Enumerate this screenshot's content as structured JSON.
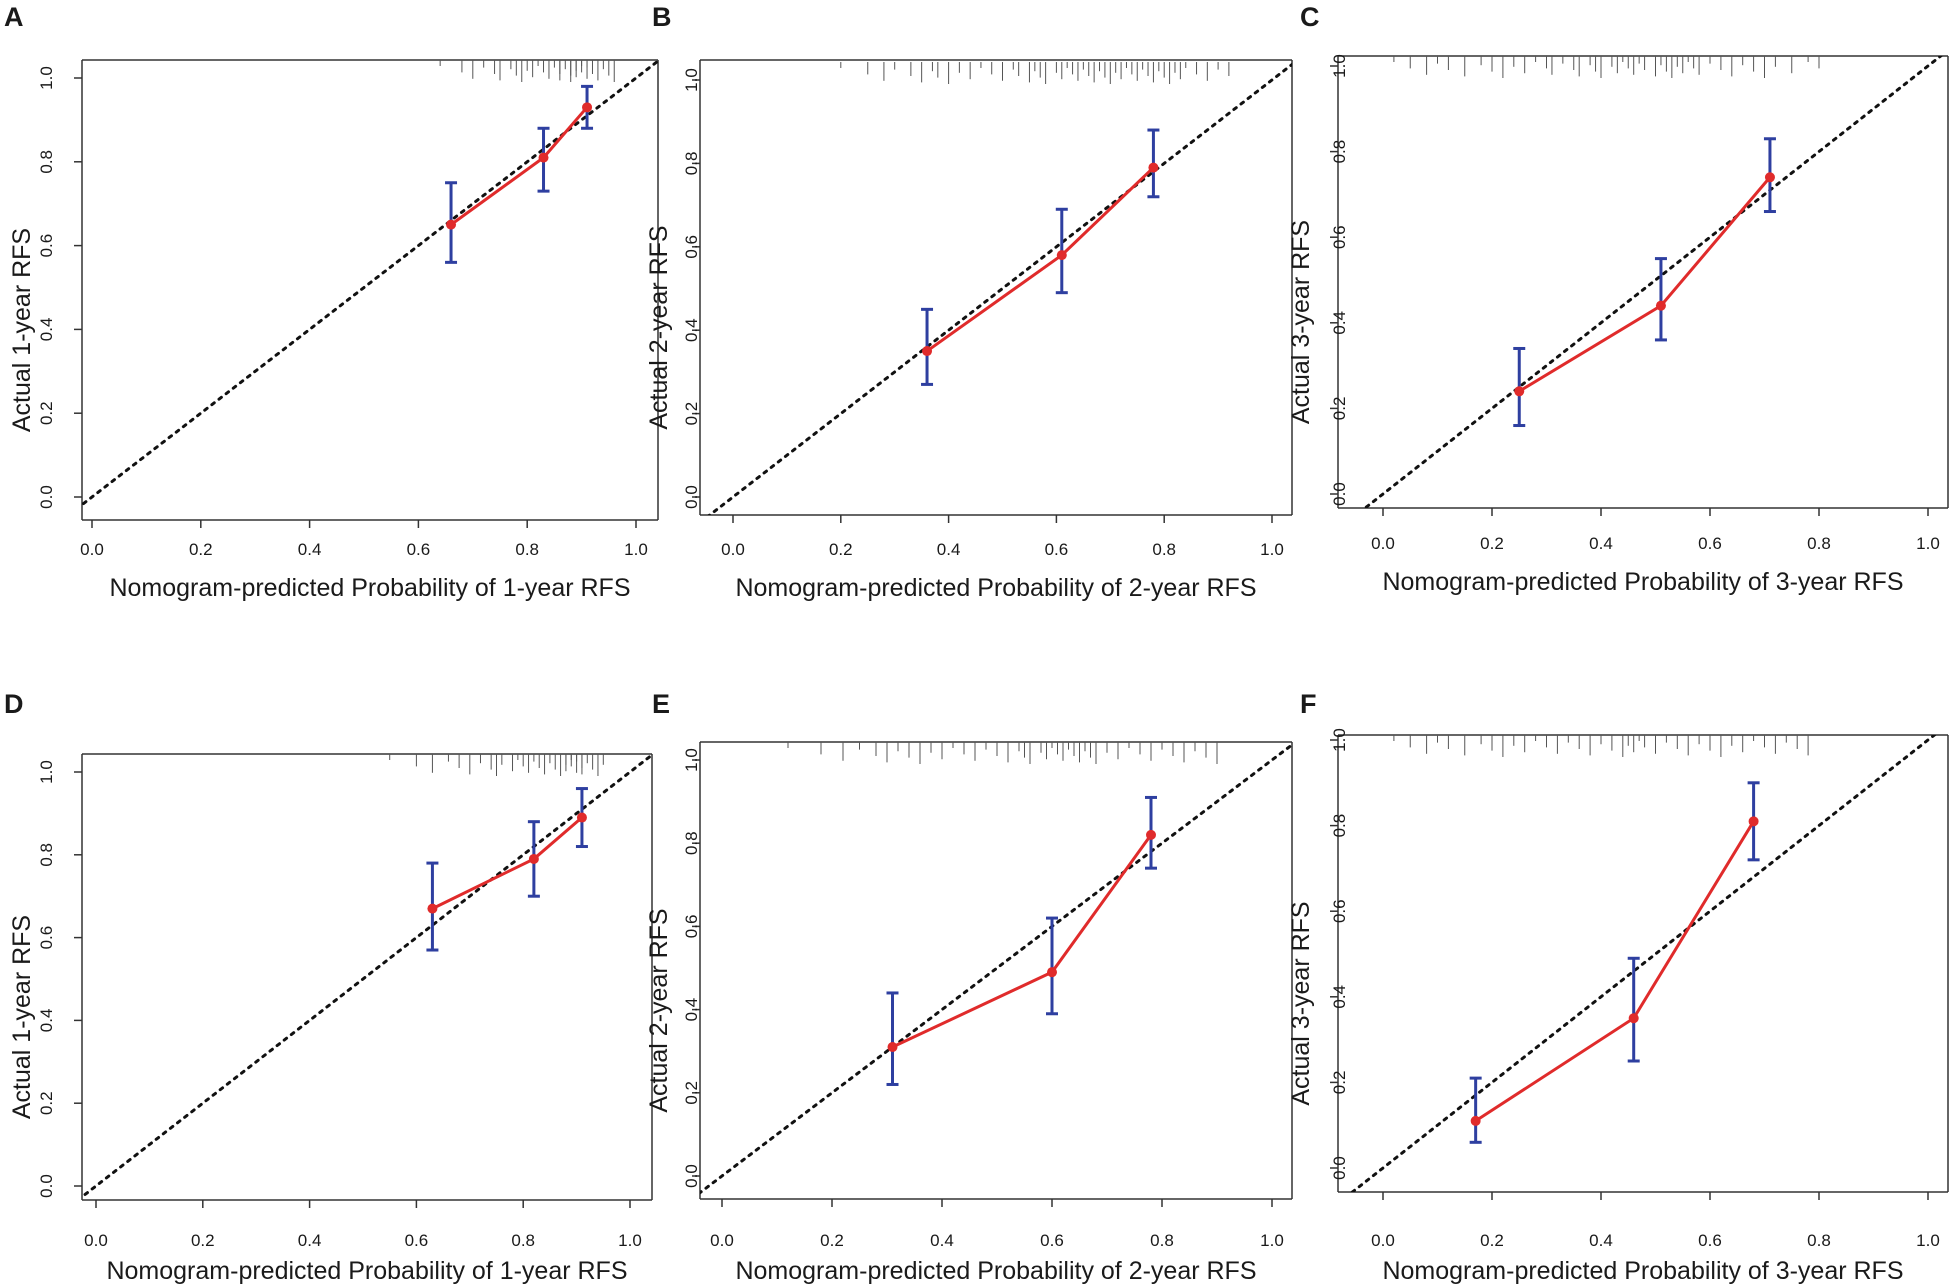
{
  "figure": {
    "colors": {
      "calibration_line": "#e02b2b",
      "ci_bars": "#2e3fa0",
      "reference_line": "#111111",
      "rug": "#555555"
    }
  },
  "chart_data": [
    {
      "panel": "A",
      "type": "line",
      "xlabel": "Nomogram-predicted Probability of 1-year RFS",
      "ylabel": "Actual 1-year RFS",
      "xlim": [
        0,
        1.05
      ],
      "ylim": [
        0,
        1.02
      ],
      "xticks": [
        "0.0",
        "0.2",
        "0.4",
        "0.6",
        "0.8",
        "1.0"
      ],
      "yticks": [
        "0.0",
        "0.2",
        "0.4",
        "0.6",
        "0.8",
        "1.0"
      ],
      "reference_line": "diagonal",
      "points": [
        {
          "x": 0.66,
          "y": 0.65,
          "lo": 0.56,
          "hi": 0.75
        },
        {
          "x": 0.83,
          "y": 0.81,
          "lo": 0.73,
          "hi": 0.88
        },
        {
          "x": 0.91,
          "y": 0.93,
          "lo": 0.88,
          "hi": 0.98
        }
      ],
      "rug": [
        0.64,
        0.68,
        0.7,
        0.72,
        0.74,
        0.75,
        0.77,
        0.78,
        0.79,
        0.8,
        0.81,
        0.82,
        0.83,
        0.84,
        0.85,
        0.86,
        0.86,
        0.87,
        0.88,
        0.88,
        0.89,
        0.89,
        0.9,
        0.9,
        0.91,
        0.91,
        0.92,
        0.93,
        0.94,
        0.95,
        0.96
      ]
    },
    {
      "panel": "B",
      "type": "line",
      "xlabel": "Nomogram-predicted Probability of 2-year RFS",
      "ylabel": "Actual 2-year RFS",
      "xlim": [
        0,
        1.05
      ],
      "ylim": [
        0,
        1.02
      ],
      "xticks": [
        "0.0",
        "0.2",
        "0.4",
        "0.6",
        "0.8",
        "1.0"
      ],
      "yticks": [
        "0.0",
        "0.2",
        "0.4",
        "0.6",
        "0.8",
        "1.0"
      ],
      "reference_line": "diagonal",
      "points": [
        {
          "x": 0.36,
          "y": 0.35,
          "lo": 0.27,
          "hi": 0.45
        },
        {
          "x": 0.61,
          "y": 0.58,
          "lo": 0.49,
          "hi": 0.69
        },
        {
          "x": 0.78,
          "y": 0.79,
          "lo": 0.72,
          "hi": 0.88
        }
      ],
      "rug": [
        0.2,
        0.25,
        0.28,
        0.3,
        0.33,
        0.35,
        0.37,
        0.38,
        0.4,
        0.42,
        0.44,
        0.46,
        0.48,
        0.5,
        0.52,
        0.53,
        0.55,
        0.56,
        0.57,
        0.58,
        0.6,
        0.61,
        0.62,
        0.63,
        0.64,
        0.65,
        0.66,
        0.67,
        0.68,
        0.69,
        0.7,
        0.71,
        0.72,
        0.73,
        0.74,
        0.75,
        0.76,
        0.77,
        0.78,
        0.79,
        0.8,
        0.81,
        0.82,
        0.83,
        0.84,
        0.86,
        0.88,
        0.9,
        0.92
      ]
    },
    {
      "panel": "C",
      "type": "line",
      "xlabel": "Nomogram-predicted Probability of 3-year RFS",
      "ylabel": "Actual 3-year RFS",
      "xlim": [
        0,
        1.05
      ],
      "ylim": [
        0,
        1.05
      ],
      "xticks": [
        "0.0",
        "0.2",
        "0.4",
        "0.6",
        "0.8",
        "1.0"
      ],
      "yticks": [
        "0.0",
        "0.2",
        "0.4",
        "0.6",
        "0.8",
        "1.0"
      ],
      "reference_line": "diagonal",
      "points": [
        {
          "x": 0.25,
          "y": 0.24,
          "lo": 0.16,
          "hi": 0.34
        },
        {
          "x": 0.51,
          "y": 0.44,
          "lo": 0.36,
          "hi": 0.55
        },
        {
          "x": 0.71,
          "y": 0.74,
          "lo": 0.66,
          "hi": 0.83
        }
      ],
      "rug": [
        0.02,
        0.05,
        0.08,
        0.1,
        0.12,
        0.15,
        0.18,
        0.2,
        0.22,
        0.24,
        0.26,
        0.28,
        0.3,
        0.31,
        0.33,
        0.35,
        0.36,
        0.38,
        0.39,
        0.4,
        0.42,
        0.43,
        0.44,
        0.45,
        0.46,
        0.47,
        0.48,
        0.5,
        0.51,
        0.52,
        0.53,
        0.54,
        0.55,
        0.56,
        0.57,
        0.58,
        0.6,
        0.62,
        0.64,
        0.66,
        0.68,
        0.7,
        0.72,
        0.75,
        0.78,
        0.8
      ]
    },
    {
      "panel": "D",
      "type": "line",
      "xlabel": "Nomogram-predicted Probability of 1-year RFS",
      "ylabel": "Actual 1-year RFS",
      "xlim": [
        0,
        1.05
      ],
      "ylim": [
        0,
        1.02
      ],
      "xticks": [
        "0.0",
        "0.2",
        "0.4",
        "0.6",
        "0.8",
        "1.0"
      ],
      "yticks": [
        "0.0",
        "0.2",
        "0.4",
        "0.6",
        "0.8",
        "1.0"
      ],
      "reference_line": "diagonal",
      "points": [
        {
          "x": 0.63,
          "y": 0.67,
          "lo": 0.57,
          "hi": 0.78
        },
        {
          "x": 0.82,
          "y": 0.79,
          "lo": 0.7,
          "hi": 0.88
        },
        {
          "x": 0.91,
          "y": 0.89,
          "lo": 0.82,
          "hi": 0.96
        }
      ],
      "rug": [
        0.55,
        0.6,
        0.63,
        0.66,
        0.68,
        0.7,
        0.72,
        0.74,
        0.75,
        0.76,
        0.78,
        0.79,
        0.8,
        0.81,
        0.82,
        0.83,
        0.84,
        0.85,
        0.86,
        0.87,
        0.88,
        0.88,
        0.89,
        0.89,
        0.9,
        0.9,
        0.91,
        0.91,
        0.92,
        0.93,
        0.94,
        0.95
      ]
    },
    {
      "panel": "E",
      "type": "line",
      "xlabel": "Nomogram-predicted Probability of 2-year RFS",
      "ylabel": "Actual 2-year RFS",
      "xlim": [
        0,
        1.05
      ],
      "ylim": [
        0,
        1.02
      ],
      "xticks": [
        "0.0",
        "0.2",
        "0.4",
        "0.6",
        "0.8",
        "1.0"
      ],
      "yticks": [
        "0.0",
        "0.2",
        "0.4",
        "0.6",
        "0.8",
        "1.0"
      ],
      "reference_line": "diagonal",
      "points": [
        {
          "x": 0.31,
          "y": 0.31,
          "lo": 0.22,
          "hi": 0.44
        },
        {
          "x": 0.6,
          "y": 0.49,
          "lo": 0.39,
          "hi": 0.62
        },
        {
          "x": 0.78,
          "y": 0.82,
          "lo": 0.74,
          "hi": 0.91
        }
      ],
      "rug": [
        0.12,
        0.18,
        0.22,
        0.25,
        0.28,
        0.3,
        0.32,
        0.34,
        0.36,
        0.38,
        0.4,
        0.42,
        0.44,
        0.46,
        0.48,
        0.5,
        0.52,
        0.54,
        0.55,
        0.56,
        0.58,
        0.59,
        0.6,
        0.61,
        0.62,
        0.63,
        0.64,
        0.65,
        0.66,
        0.67,
        0.68,
        0.7,
        0.72,
        0.74,
        0.76,
        0.78,
        0.8,
        0.82,
        0.84,
        0.86,
        0.88,
        0.9
      ]
    },
    {
      "panel": "F",
      "type": "line",
      "xlabel": "Nomogram-predicted Probability of 3-year RFS",
      "ylabel": "Actual 3-year RFS",
      "xlim": [
        0,
        1.05
      ],
      "ylim": [
        0,
        1.05
      ],
      "xticks": [
        "0.0",
        "0.2",
        "0.4",
        "0.6",
        "0.8",
        "1.0"
      ],
      "yticks": [
        "0.0",
        "0.2",
        "0.4",
        "0.6",
        "0.8",
        "1.0"
      ],
      "reference_line": "diagonal",
      "points": [
        {
          "x": 0.17,
          "y": 0.11,
          "lo": 0.06,
          "hi": 0.21
        },
        {
          "x": 0.46,
          "y": 0.35,
          "lo": 0.25,
          "hi": 0.49
        },
        {
          "x": 0.68,
          "y": 0.81,
          "lo": 0.72,
          "hi": 0.9
        }
      ],
      "rug": [
        0.02,
        0.05,
        0.08,
        0.1,
        0.12,
        0.15,
        0.18,
        0.2,
        0.22,
        0.24,
        0.26,
        0.28,
        0.3,
        0.32,
        0.34,
        0.36,
        0.38,
        0.4,
        0.42,
        0.44,
        0.45,
        0.46,
        0.47,
        0.48,
        0.5,
        0.52,
        0.54,
        0.56,
        0.58,
        0.6,
        0.62,
        0.64,
        0.66,
        0.68,
        0.7,
        0.72,
        0.74,
        0.76,
        0.78
      ]
    }
  ]
}
